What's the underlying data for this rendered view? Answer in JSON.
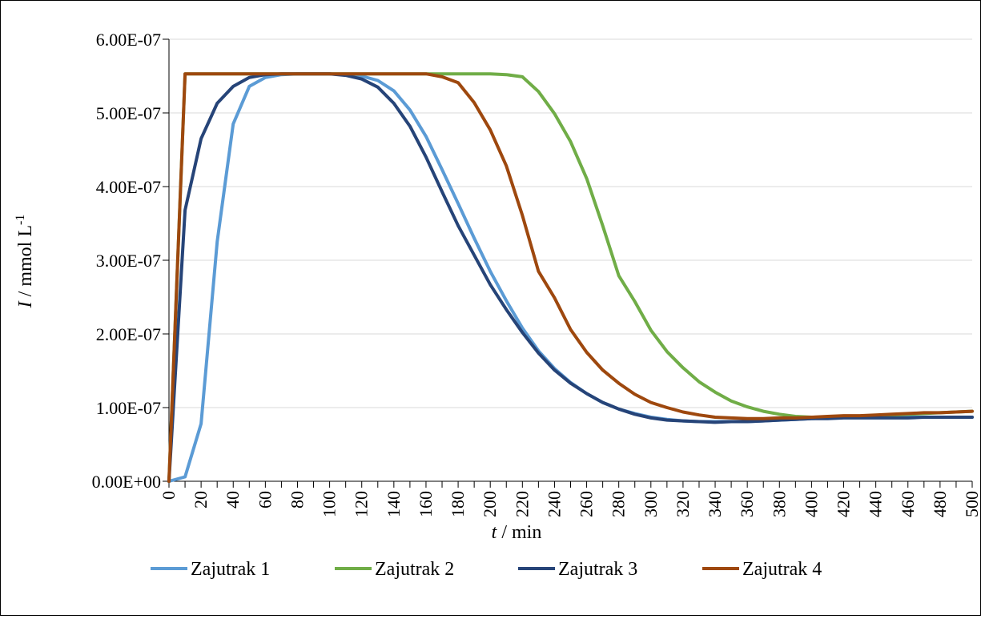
{
  "chart_data": {
    "type": "line",
    "xlabel_var": "t",
    "xlabel_unit": " / min",
    "ylabel_var": "I",
    "ylabel_unit": " / mmol L",
    "ylabel_sup": "-1",
    "ylim": [
      0,
      6e-07
    ],
    "yticks": [
      "0.00E+00",
      "1.00E-07",
      "2.00E-07",
      "3.00E-07",
      "4.00E-07",
      "5.00E-07",
      "6.00E-07"
    ],
    "xticks": [
      "0",
      "20",
      "40",
      "60",
      "80",
      "100",
      "120",
      "140",
      "160",
      "180",
      "200",
      "220",
      "240",
      "260",
      "280",
      "300",
      "320",
      "340",
      "360",
      "380",
      "400",
      "420",
      "440",
      "460",
      "480",
      "500"
    ],
    "grid": "horizontal",
    "legend_position": "bottom",
    "x": [
      0,
      10,
      20,
      30,
      40,
      50,
      60,
      70,
      80,
      90,
      100,
      110,
      120,
      130,
      140,
      150,
      160,
      170,
      180,
      190,
      200,
      210,
      220,
      230,
      240,
      250,
      260,
      270,
      280,
      290,
      300,
      310,
      320,
      330,
      340,
      350,
      360,
      370,
      380,
      390,
      400,
      410,
      420,
      430,
      440,
      450,
      460,
      470,
      480,
      490,
      500
    ],
    "series": [
      {
        "name": "Zajutrak 1",
        "color": "#5B9BD5",
        "values": [
          0.0,
          0.06,
          0.78,
          3.25,
          4.85,
          5.36,
          5.48,
          5.52,
          5.53,
          5.53,
          5.53,
          5.52,
          5.5,
          5.44,
          5.3,
          5.04,
          4.68,
          4.23,
          3.77,
          3.3,
          2.85,
          2.45,
          2.08,
          1.77,
          1.53,
          1.34,
          1.19,
          1.07,
          0.98,
          0.92,
          0.87,
          0.84,
          0.82,
          0.81,
          0.81,
          0.81,
          0.81,
          0.82,
          0.83,
          0.84,
          0.85,
          0.86,
          0.87,
          0.87,
          0.87,
          0.87,
          0.87,
          0.87,
          0.87,
          0.87,
          0.87
        ]
      },
      {
        "name": "Zajutrak 2",
        "color": "#70AD47",
        "values": [
          0.0,
          5.53,
          5.53,
          5.53,
          5.53,
          5.53,
          5.53,
          5.53,
          5.53,
          5.53,
          5.53,
          5.53,
          5.53,
          5.53,
          5.53,
          5.53,
          5.53,
          5.53,
          5.53,
          5.53,
          5.53,
          5.52,
          5.49,
          5.29,
          4.99,
          4.61,
          4.11,
          3.47,
          2.79,
          2.44,
          2.05,
          1.76,
          1.54,
          1.35,
          1.21,
          1.09,
          1.01,
          0.95,
          0.91,
          0.88,
          0.87,
          0.87,
          0.87,
          0.88,
          0.89,
          0.9,
          0.91,
          0.92,
          0.93,
          0.94,
          0.95
        ]
      },
      {
        "name": "Zajutrak 3",
        "color": "#264478",
        "values": [
          0.0,
          3.68,
          4.65,
          5.13,
          5.36,
          5.48,
          5.52,
          5.53,
          5.53,
          5.53,
          5.53,
          5.51,
          5.46,
          5.35,
          5.13,
          4.82,
          4.4,
          3.93,
          3.47,
          3.07,
          2.67,
          2.33,
          2.02,
          1.74,
          1.51,
          1.33,
          1.19,
          1.07,
          0.98,
          0.91,
          0.86,
          0.83,
          0.82,
          0.81,
          0.8,
          0.81,
          0.81,
          0.82,
          0.83,
          0.84,
          0.85,
          0.85,
          0.86,
          0.86,
          0.86,
          0.86,
          0.86,
          0.87,
          0.87,
          0.87,
          0.87
        ]
      },
      {
        "name": "Zajutrak 4",
        "color": "#9E480E",
        "values": [
          0.0,
          5.53,
          5.53,
          5.53,
          5.53,
          5.53,
          5.53,
          5.53,
          5.53,
          5.53,
          5.53,
          5.53,
          5.53,
          5.53,
          5.53,
          5.53,
          5.53,
          5.49,
          5.41,
          5.14,
          4.77,
          4.28,
          3.61,
          2.85,
          2.49,
          2.06,
          1.75,
          1.51,
          1.33,
          1.18,
          1.07,
          1.0,
          0.94,
          0.9,
          0.87,
          0.86,
          0.85,
          0.85,
          0.86,
          0.86,
          0.87,
          0.88,
          0.89,
          0.89,
          0.9,
          0.91,
          0.92,
          0.93,
          0.93,
          0.94,
          0.95
        ]
      }
    ],
    "value_scale": 1e-07
  }
}
